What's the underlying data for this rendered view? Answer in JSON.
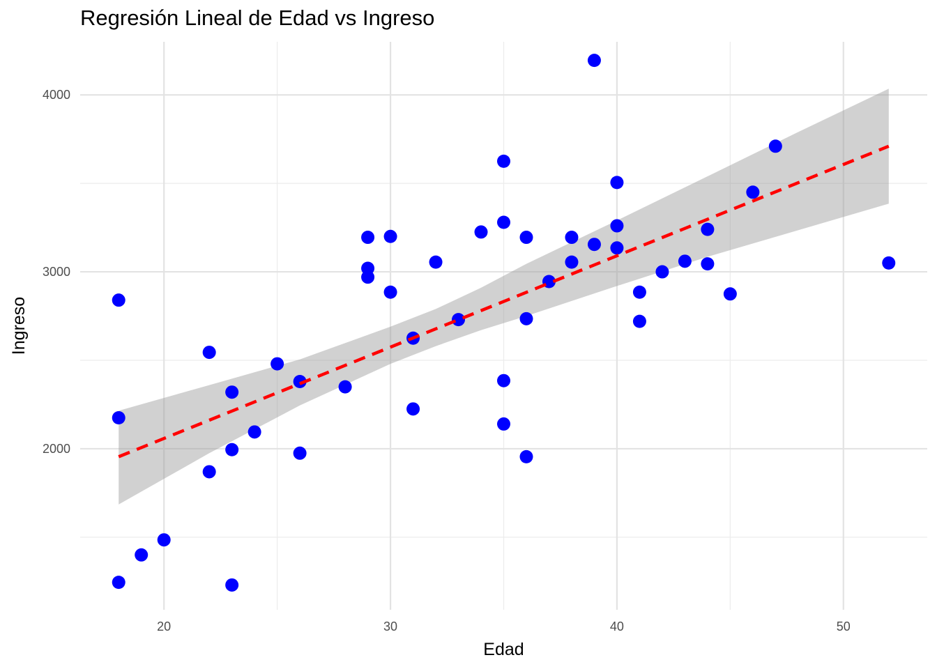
{
  "chart_data": {
    "type": "scatter",
    "title": "Regresión Lineal de Edad vs Ingreso",
    "xlabel": "Edad",
    "ylabel": "Ingreso",
    "xlim": [
      16.3,
      53.7
    ],
    "ylim": [
      1090,
      4300
    ],
    "x_ticks": [
      20,
      30,
      40,
      50
    ],
    "y_ticks": [
      2000,
      3000,
      4000
    ],
    "x_minor": [
      25,
      35,
      45
    ],
    "y_minor": [
      1500,
      2500,
      3500
    ],
    "grid": true,
    "colors": {
      "points": "#0000ff",
      "line": "#ff0000",
      "band": "#999999"
    },
    "points": [
      {
        "x": 18,
        "y": 2840
      },
      {
        "x": 18,
        "y": 2175
      },
      {
        "x": 18,
        "y": 1245
      },
      {
        "x": 19,
        "y": 1400
      },
      {
        "x": 20,
        "y": 1485
      },
      {
        "x": 22,
        "y": 2545
      },
      {
        "x": 22,
        "y": 1870
      },
      {
        "x": 23,
        "y": 2320
      },
      {
        "x": 23,
        "y": 1995
      },
      {
        "x": 23,
        "y": 1230
      },
      {
        "x": 24,
        "y": 2095
      },
      {
        "x": 25,
        "y": 2480
      },
      {
        "x": 26,
        "y": 2380
      },
      {
        "x": 26,
        "y": 1975
      },
      {
        "x": 28,
        "y": 2350
      },
      {
        "x": 29,
        "y": 3195
      },
      {
        "x": 29,
        "y": 3020
      },
      {
        "x": 29,
        "y": 2970
      },
      {
        "x": 30,
        "y": 3200
      },
      {
        "x": 30,
        "y": 2885
      },
      {
        "x": 31,
        "y": 2625
      },
      {
        "x": 31,
        "y": 2225
      },
      {
        "x": 32,
        "y": 3055
      },
      {
        "x": 33,
        "y": 2730
      },
      {
        "x": 34,
        "y": 3225
      },
      {
        "x": 35,
        "y": 3625
      },
      {
        "x": 35,
        "y": 3280
      },
      {
        "x": 35,
        "y": 2385
      },
      {
        "x": 35,
        "y": 2140
      },
      {
        "x": 36,
        "y": 3195
      },
      {
        "x": 36,
        "y": 2735
      },
      {
        "x": 36,
        "y": 1955
      },
      {
        "x": 37,
        "y": 2945
      },
      {
        "x": 38,
        "y": 3195
      },
      {
        "x": 38,
        "y": 3055
      },
      {
        "x": 39,
        "y": 4195
      },
      {
        "x": 39,
        "y": 3155
      },
      {
        "x": 40,
        "y": 3505
      },
      {
        "x": 40,
        "y": 3260
      },
      {
        "x": 40,
        "y": 3135
      },
      {
        "x": 41,
        "y": 2885
      },
      {
        "x": 41,
        "y": 2720
      },
      {
        "x": 42,
        "y": 3000
      },
      {
        "x": 43,
        "y": 3060
      },
      {
        "x": 44,
        "y": 3240
      },
      {
        "x": 44,
        "y": 3045
      },
      {
        "x": 45,
        "y": 2875
      },
      {
        "x": 46,
        "y": 3450
      },
      {
        "x": 47,
        "y": 3710
      },
      {
        "x": 52,
        "y": 3050
      }
    ],
    "regression_line": {
      "x": [
        18,
        52
      ],
      "y": [
        1955,
        3710
      ]
    },
    "confidence_band": {
      "x": [
        18,
        22,
        26,
        30,
        32,
        34,
        36,
        40,
        44,
        48,
        52
      ],
      "lower": [
        1685,
        1975,
        2245,
        2480,
        2580,
        2670,
        2750,
        2920,
        3085,
        3235,
        3385
      ],
      "upper": [
        2215,
        2360,
        2505,
        2690,
        2790,
        2910,
        3045,
        3290,
        3540,
        3790,
        4035
      ]
    }
  }
}
